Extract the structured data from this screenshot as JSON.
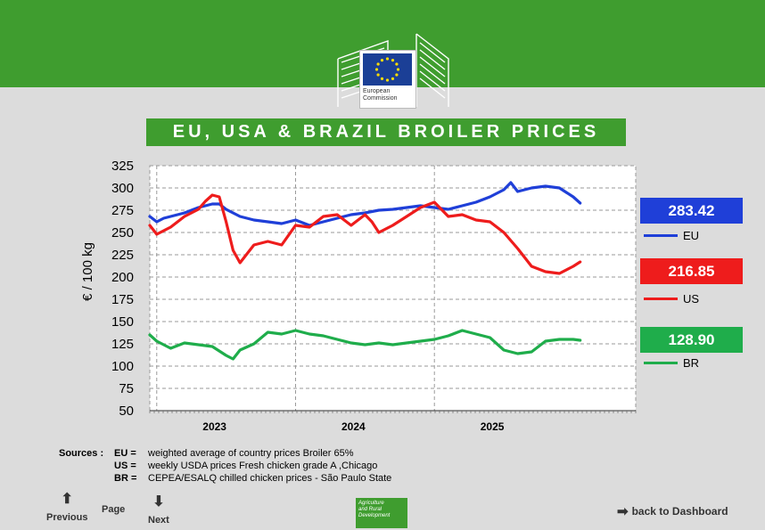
{
  "header": {
    "logo_line1": "European",
    "logo_line2": "Commission",
    "title": "EU, USA & BRAZIL  BROILER  PRICES"
  },
  "colors": {
    "eu": "#1f3fd8",
    "us": "#ee1c1c",
    "br": "#1fad4b",
    "brand_green": "#3f9d2f"
  },
  "chart_data": {
    "type": "line",
    "title": "EU, USA & BRAZIL  BROILER  PRICES",
    "ylabel": "€ / 100 kg",
    "xlabel": "",
    "ylim": [
      50,
      325
    ],
    "yticks": [
      50,
      75,
      100,
      125,
      150,
      175,
      200,
      225,
      250,
      275,
      300,
      325
    ],
    "xlim": [
      2022.45,
      2025.95
    ],
    "xticks": [
      {
        "x": 2023.0,
        "label": "2023"
      },
      {
        "x": 2024.0,
        "label": "2024"
      },
      {
        "x": 2025.0,
        "label": "2025"
      }
    ],
    "grid": true,
    "series": [
      {
        "name": "EU",
        "last_value": "283.42",
        "x": [
          2022.45,
          2022.5,
          2022.55,
          2022.6,
          2022.7,
          2022.8,
          2022.9,
          2022.95,
          2023.0,
          2023.1,
          2023.2,
          2023.3,
          2023.4,
          2023.5,
          2023.6,
          2023.7,
          2023.8,
          2023.9,
          2024.0,
          2024.1,
          2024.2,
          2024.3,
          2024.4,
          2024.5,
          2024.6,
          2024.7,
          2024.8,
          2024.9,
          2025.0,
          2025.05,
          2025.1,
          2025.2,
          2025.3,
          2025.4,
          2025.5,
          2025.55
        ],
        "values": [
          268,
          262,
          266,
          268,
          272,
          278,
          282,
          282,
          276,
          268,
          264,
          262,
          260,
          264,
          258,
          262,
          266,
          270,
          272,
          275,
          276,
          278,
          280,
          278,
          276,
          280,
          284,
          290,
          298,
          306,
          296,
          300,
          302,
          300,
          290,
          283
        ]
      },
      {
        "name": "US",
        "last_value": "216.85",
        "x": [
          2022.45,
          2022.5,
          2022.6,
          2022.7,
          2022.8,
          2022.85,
          2022.9,
          2022.95,
          2023.0,
          2023.05,
          2023.1,
          2023.2,
          2023.3,
          2023.4,
          2023.5,
          2023.6,
          2023.7,
          2023.8,
          2023.9,
          2024.0,
          2024.05,
          2024.1,
          2024.2,
          2024.3,
          2024.4,
          2024.5,
          2024.6,
          2024.7,
          2024.8,
          2024.9,
          2025.0,
          2025.1,
          2025.2,
          2025.3,
          2025.4,
          2025.5,
          2025.55
        ],
        "values": [
          258,
          248,
          256,
          268,
          276,
          285,
          292,
          290,
          262,
          230,
          216,
          236,
          240,
          236,
          258,
          256,
          268,
          270,
          258,
          270,
          262,
          250,
          258,
          268,
          278,
          284,
          268,
          270,
          264,
          262,
          250,
          232,
          212,
          206,
          204,
          212,
          217
        ]
      },
      {
        "name": "BR",
        "last_value": "128.90",
        "x": [
          2022.45,
          2022.5,
          2022.6,
          2022.7,
          2022.8,
          2022.9,
          2023.0,
          2023.05,
          2023.1,
          2023.2,
          2023.3,
          2023.4,
          2023.5,
          2023.6,
          2023.7,
          2023.8,
          2023.9,
          2024.0,
          2024.1,
          2024.2,
          2024.3,
          2024.4,
          2024.5,
          2024.6,
          2024.7,
          2024.8,
          2024.9,
          2025.0,
          2025.1,
          2025.2,
          2025.3,
          2025.4,
          2025.5,
          2025.55
        ],
        "values": [
          135,
          128,
          120,
          126,
          124,
          122,
          112,
          108,
          118,
          125,
          138,
          136,
          140,
          136,
          134,
          130,
          126,
          124,
          126,
          124,
          126,
          128,
          130,
          134,
          140,
          136,
          132,
          118,
          114,
          116,
          128,
          130,
          130,
          129
        ]
      }
    ]
  },
  "sources": {
    "label": "Sources :",
    "eu_key": "EU =",
    "eu_text": "weighted average of country prices     Broiler 65%",
    "us_key": "US =",
    "us_text": "weekly USDA prices     Fresh chicken grade A ,Chicago",
    "br_key": "BR =",
    "br_text": "CEPEA/ESALQ chilled chicken prices - São Paulo State"
  },
  "nav": {
    "previous": "Previous",
    "page": "Page",
    "next": "Next",
    "back": "back to Dashboard",
    "badge_l1": "Agriculture",
    "badge_l2": "and Rural",
    "badge_l3": "Development"
  }
}
